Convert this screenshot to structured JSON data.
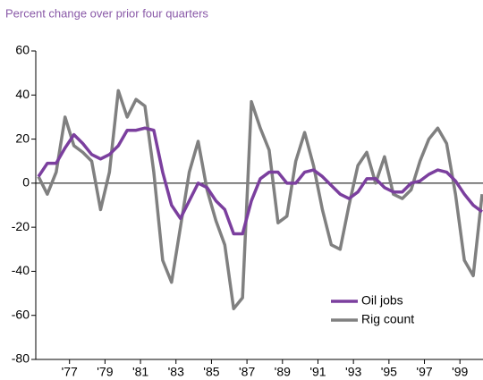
{
  "chart_data": {
    "type": "line",
    "title": "Percent change over prior four quarters",
    "x": [
      1975.25,
      1975.75,
      1976.25,
      1976.75,
      1977.25,
      1977.75,
      1978.25,
      1978.75,
      1979.25,
      1979.75,
      1980.25,
      1980.75,
      1981.25,
      1981.75,
      1982.25,
      1982.75,
      1983.25,
      1983.75,
      1984.25,
      1984.75,
      1985.25,
      1985.75,
      1986.25,
      1986.75,
      1987.25,
      1987.75,
      1988.25,
      1988.75,
      1989.25,
      1989.75,
      1990.25,
      1990.75,
      1991.25,
      1991.75,
      1992.25,
      1992.75,
      1993.25,
      1993.75,
      1994.25,
      1994.75,
      1995.25,
      1995.75,
      1996.25,
      1996.75,
      1997.25,
      1997.75,
      1998.25,
      1998.75,
      1999.25,
      1999.75,
      2000.25
    ],
    "series": [
      {
        "name": "Oil jobs",
        "color": "#7b3f9e",
        "values": [
          3,
          9,
          9,
          16,
          22,
          18,
          13,
          11,
          13,
          17,
          24,
          24,
          25,
          24,
          5,
          -10,
          -16,
          -8,
          0,
          -2,
          -8,
          -12,
          -23,
          -23,
          -8,
          2,
          5,
          5,
          0,
          0,
          5,
          6,
          3,
          -1,
          -5,
          -7,
          -4,
          2,
          2,
          -2,
          -4,
          -4,
          0,
          1,
          4,
          6,
          5,
          1,
          -5,
          -10,
          -13
        ]
      },
      {
        "name": "Rig count",
        "color": "#808080",
        "values": [
          3,
          -5,
          5,
          30,
          17,
          14,
          10,
          -12,
          5,
          42,
          30,
          38,
          35,
          5,
          -35,
          -45,
          -20,
          5,
          19,
          -3,
          -17,
          -28,
          -57,
          -52,
          37,
          25,
          15,
          -18,
          -15,
          10,
          23,
          8,
          -12,
          -28,
          -30,
          -10,
          8,
          14,
          0,
          12,
          -5,
          -7,
          -3,
          10,
          20,
          25,
          18,
          -5,
          -35,
          -42,
          -5
        ]
      }
    ],
    "xlim": [
      1975.1,
      2000.3
    ],
    "xticks": [
      {
        "value": 1977,
        "label": "'77"
      },
      {
        "value": 1979,
        "label": "'79"
      },
      {
        "value": 1981,
        "label": "'81"
      },
      {
        "value": 1983,
        "label": "'83"
      },
      {
        "value": 1985,
        "label": "'85"
      },
      {
        "value": 1987,
        "label": "'87"
      },
      {
        "value": 1989,
        "label": "'89"
      },
      {
        "value": 1991,
        "label": "'91"
      },
      {
        "value": 1993,
        "label": "'93"
      },
      {
        "value": 1995,
        "label": "'95"
      },
      {
        "value": 1997,
        "label": "'97"
      },
      {
        "value": 1999,
        "label": "'99"
      }
    ],
    "ylim": [
      -80,
      60
    ],
    "yticks": [
      -80,
      -60,
      -40,
      -20,
      0,
      20,
      40,
      60
    ],
    "legend": "lower-right"
  }
}
